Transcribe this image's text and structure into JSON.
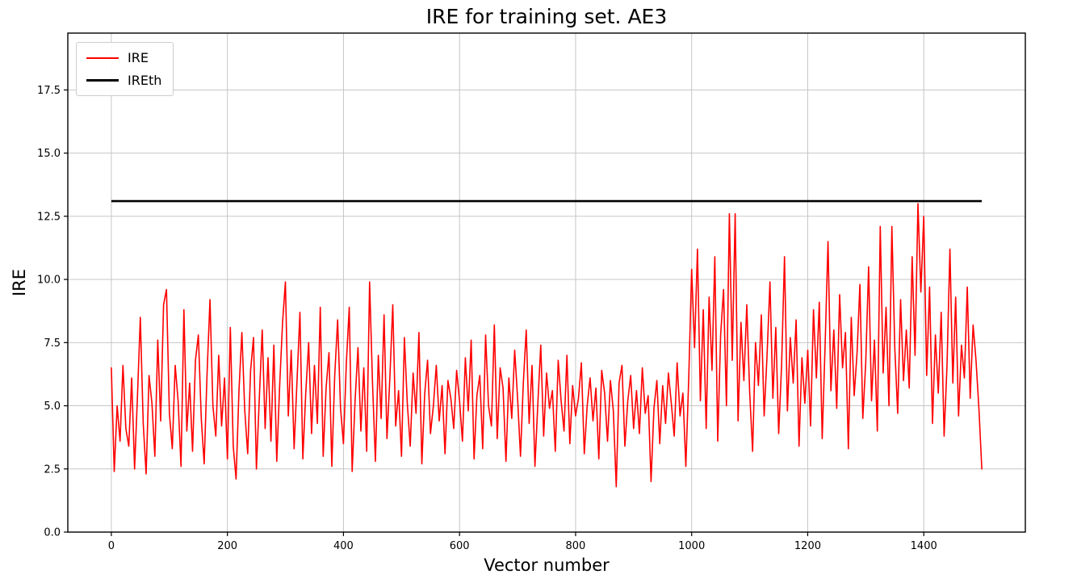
{
  "chart_data": {
    "type": "line",
    "title": "IRE for training set. AE3",
    "xlabel": "Vector number",
    "ylabel": "IRE",
    "xlim": [
      -75,
      1575
    ],
    "ylim": [
      0,
      19.75
    ],
    "x_ticks": [
      0,
      200,
      400,
      600,
      800,
      1000,
      1200,
      1400
    ],
    "x_tick_labels": [
      "0",
      "200",
      "400",
      "600",
      "800",
      "1000",
      "1200",
      "1400"
    ],
    "y_ticks": [
      0,
      2.5,
      5,
      7.5,
      10,
      12.5,
      15,
      17.5
    ],
    "y_tick_labels": [
      "0.0",
      "2.5",
      "5.0",
      "7.5",
      "10.0",
      "12.5",
      "15.0",
      "17.5"
    ],
    "grid": true,
    "grid_color": "#c6c6c6",
    "legend": {
      "position": "upper left",
      "items": [
        {
          "label": "IRE",
          "color": "#ff0000",
          "line_width": 2
        },
        {
          "label": "IREth",
          "color": "#000000",
          "line_width": 3
        }
      ]
    },
    "series": [
      {
        "name": "IRE",
        "color": "#ff0000",
        "style": "noisy-line",
        "x_start": 0,
        "x_step": 5,
        "values": [
          6.5,
          2.4,
          5.0,
          3.6,
          6.6,
          4.1,
          3.4,
          6.1,
          2.5,
          5.4,
          8.5,
          4.3,
          2.3,
          6.2,
          5.1,
          3.0,
          7.6,
          4.4,
          9.0,
          9.6,
          4.7,
          3.3,
          6.6,
          5.2,
          2.6,
          8.8,
          4.0,
          5.9,
          3.2,
          6.8,
          7.8,
          4.5,
          2.7,
          6.3,
          9.2,
          5.0,
          3.8,
          7.0,
          4.2,
          6.1,
          2.9,
          8.1,
          3.4,
          2.1,
          5.6,
          7.9,
          4.8,
          3.1,
          6.4,
          7.7,
          2.5,
          5.3,
          8.0,
          4.1,
          6.9,
          3.6,
          7.4,
          2.8,
          5.8,
          8.3,
          9.9,
          4.6,
          7.2,
          3.3,
          6.0,
          8.7,
          2.9,
          5.5,
          7.5,
          3.9,
          6.6,
          4.3,
          8.9,
          3.0,
          5.7,
          7.1,
          2.6,
          6.2,
          8.4,
          4.9,
          3.5,
          6.7,
          8.9,
          2.4,
          5.2,
          7.3,
          4.0,
          6.5,
          3.2,
          9.9,
          5.9,
          2.8,
          7.0,
          4.5,
          8.6,
          3.7,
          6.1,
          9.0,
          4.2,
          5.6,
          3.0,
          7.7,
          5.1,
          3.4,
          6.3,
          4.7,
          7.9,
          2.7,
          5.5,
          6.8,
          3.9,
          5.0,
          6.6,
          4.4,
          5.8,
          3.1,
          6.0,
          5.3,
          4.1,
          6.4,
          5.2,
          3.6,
          6.9,
          4.8,
          7.6,
          2.9,
          5.4,
          6.2,
          3.3,
          7.8,
          5.0,
          4.2,
          8.2,
          3.7,
          6.5,
          5.7,
          2.8,
          6.1,
          4.5,
          7.2,
          5.3,
          3.0,
          5.9,
          8.0,
          4.3,
          6.6,
          2.6,
          5.1,
          7.4,
          3.8,
          6.3,
          4.9,
          5.6,
          3.2,
          6.8,
          5.2,
          4.0,
          7.0,
          3.5,
          5.8,
          4.6,
          5.3,
          6.7,
          3.1,
          5.0,
          6.1,
          4.4,
          5.7,
          2.9,
          6.4,
          5.5,
          3.6,
          6.0,
          4.8,
          1.8,
          5.9,
          6.6,
          3.4,
          5.2,
          6.2,
          4.1,
          5.6,
          3.9,
          6.5,
          4.7,
          5.4,
          2.0,
          4.9,
          6.0,
          3.5,
          5.8,
          4.3,
          6.3,
          5.1,
          3.8,
          6.7,
          4.6,
          5.5,
          2.6,
          6.1,
          10.4,
          7.3,
          11.2,
          5.2,
          8.8,
          4.1,
          9.3,
          6.4,
          10.9,
          3.6,
          7.8,
          9.6,
          5.0,
          12.6,
          6.8,
          12.6,
          4.4,
          8.3,
          6.0,
          9.0,
          5.5,
          3.2,
          7.5,
          5.8,
          8.6,
          4.6,
          7.0,
          9.9,
          5.3,
          8.1,
          3.9,
          6.6,
          10.9,
          4.8,
          7.7,
          5.9,
          8.4,
          3.4,
          6.9,
          5.1,
          7.2,
          4.2,
          8.8,
          6.1,
          9.1,
          3.7,
          7.4,
          11.5,
          5.6,
          8.0,
          4.9,
          9.4,
          6.5,
          7.9,
          3.3,
          8.5,
          5.4,
          7.1,
          9.8,
          4.5,
          6.7,
          10.5,
          5.2,
          7.6,
          4.0,
          12.1,
          6.3,
          8.9,
          5.0,
          12.1,
          7.3,
          4.7,
          9.2,
          6.0,
          8.0,
          5.7,
          10.9,
          7.0,
          13.0,
          9.5,
          12.5,
          6.2,
          9.7,
          4.3,
          7.8,
          5.5,
          8.7,
          3.8,
          6.6,
          11.2,
          5.9,
          9.3,
          4.6,
          7.4,
          6.1,
          9.7,
          5.3,
          8.2,
          6.8,
          4.9,
          2.5
        ]
      },
      {
        "name": "IREth",
        "color": "#000000",
        "style": "hline",
        "y": 13.1,
        "x_range": [
          0,
          1500
        ]
      }
    ]
  }
}
